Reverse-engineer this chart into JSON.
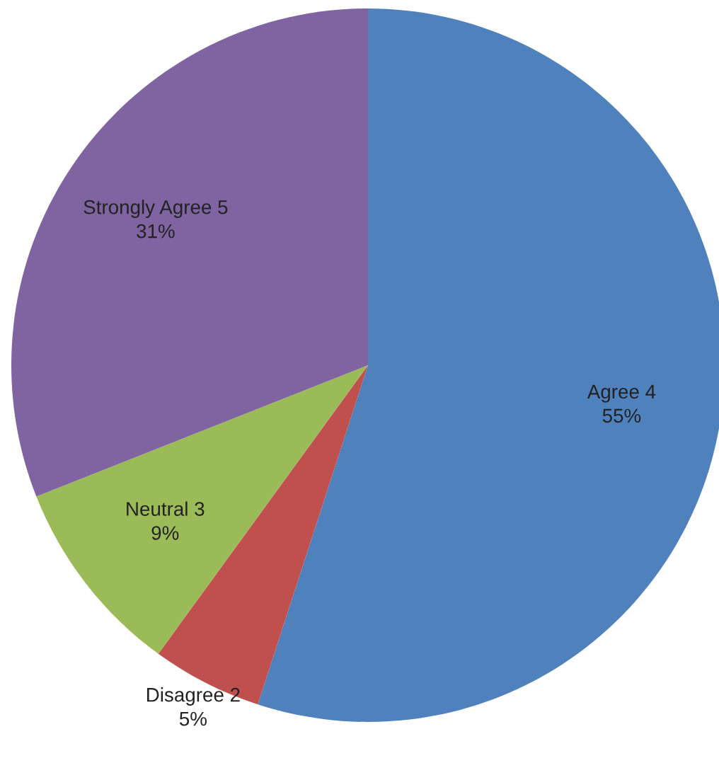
{
  "chart_data": {
    "type": "pie",
    "categories": [
      "Agree 4",
      "Disagree 2",
      "Neutral 3",
      "Strongly Agree 5"
    ],
    "values": [
      55,
      5,
      9,
      31
    ],
    "colors": [
      "#4f81bd",
      "#c0504d",
      "#9bbb59",
      "#8064a2"
    ],
    "value_labels": [
      "55%",
      "5%",
      "9%",
      "31%"
    ],
    "legend": false
  }
}
